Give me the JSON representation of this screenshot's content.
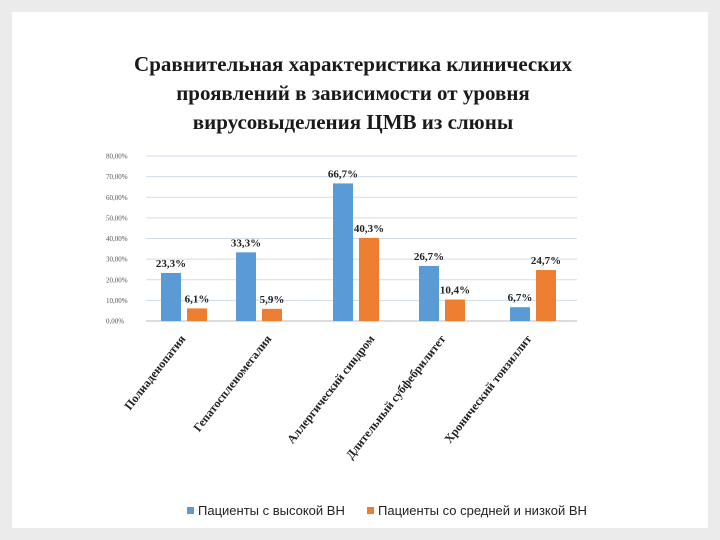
{
  "chart_data": {
    "type": "bar",
    "title_lines": [
      "Сравнительная характеристика клинических",
      "проявлений в зависимости от уровня",
      "вирусовыделения ЦМВ из слюны"
    ],
    "categories": [
      "Полиаденопатия",
      "Гепатоспленомегалия",
      "Аллергический синдром",
      "Длительный субфебрилитет",
      "Хронический тонзиллит"
    ],
    "series": [
      {
        "name": "Пациенты с высокой ВН",
        "color": "#5b9bd5",
        "values": [
          23.3,
          33.3,
          66.7,
          26.7,
          6.7
        ],
        "labels": [
          "23,3%",
          "33,3%",
          "66,7%",
          "26,7%",
          "6,7%"
        ]
      },
      {
        "name": "Пациенты со средней и низкой ВН",
        "color": "#ed7d31",
        "values": [
          6.1,
          5.9,
          40.3,
          10.4,
          24.7
        ],
        "labels": [
          "6,1%",
          "5,9%",
          "40,3%",
          "10,4%",
          "24,7%"
        ]
      }
    ],
    "y_ticks": [
      "0,00%",
      "10,00%",
      "20,00%",
      "30,00%",
      "40,00%",
      "50,00%",
      "60,00%",
      "70,00%",
      "80,00%"
    ],
    "ylim": [
      0,
      80
    ],
    "grid": true,
    "legend_position": "bottom",
    "xlabel": "",
    "ylabel": ""
  }
}
